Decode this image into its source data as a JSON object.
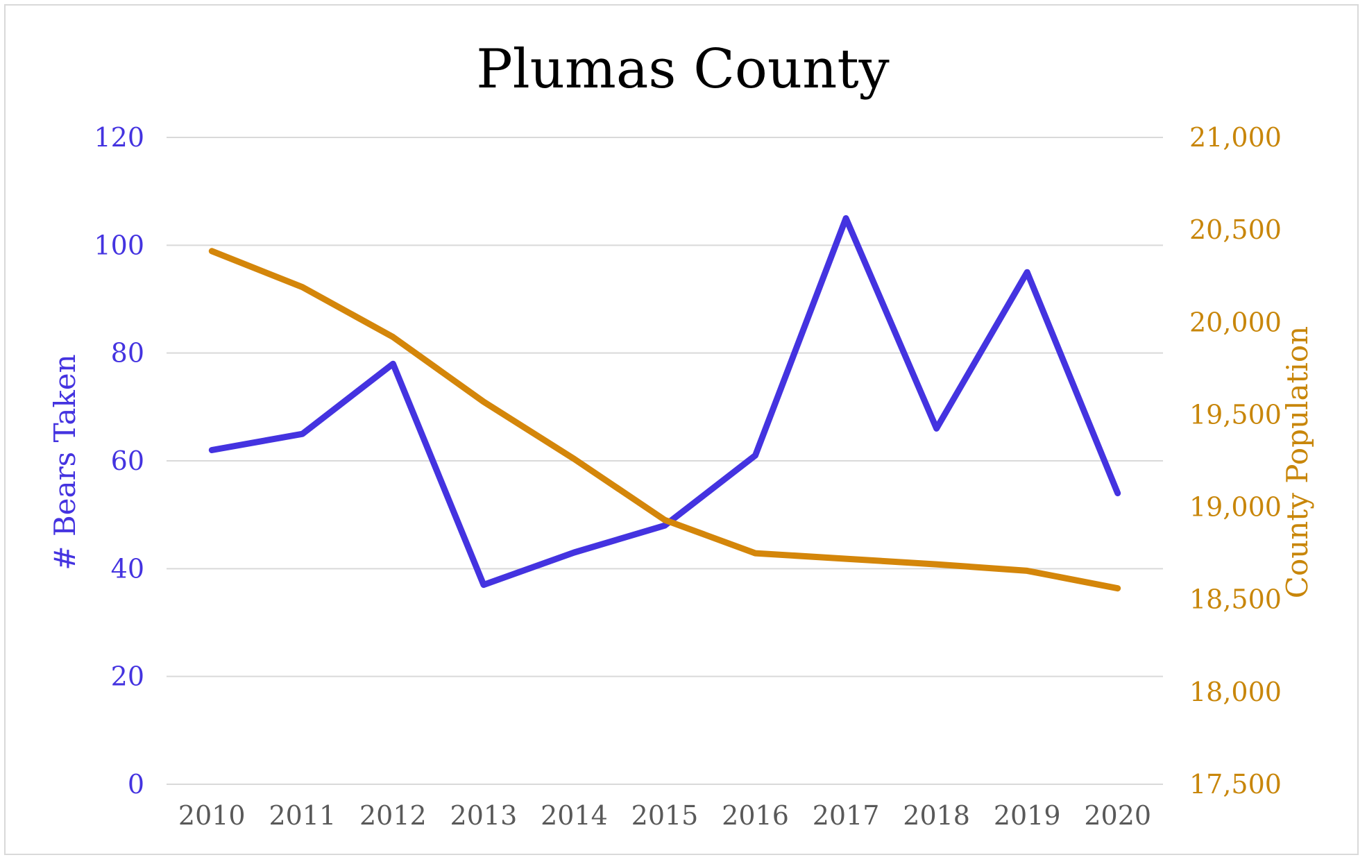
{
  "chart_data": {
    "type": "line",
    "title": "Plumas County",
    "xlabel": "",
    "categories": [
      "2010",
      "2011",
      "2012",
      "2013",
      "2014",
      "2015",
      "2016",
      "2017",
      "2018",
      "2019",
      "2020"
    ],
    "y_left": {
      "label": "# Bears Taken",
      "range": [
        0,
        120
      ],
      "ticks": [
        "0",
        "20",
        "40",
        "60",
        "80",
        "100",
        "120"
      ],
      "color": "#4433e0"
    },
    "y_right": {
      "label": "County Population",
      "range": [
        17500,
        21000
      ],
      "ticks": [
        "17,500",
        "18,000",
        "18,500",
        "19,000",
        "19,500",
        "20,000",
        "20,500",
        "21,000"
      ],
      "color": "#c8860a"
    },
    "series": [
      {
        "axis": "left",
        "color": "#4433e0",
        "values": [
          62,
          65,
          78,
          37,
          43,
          48,
          61,
          105,
          66,
          95,
          54
        ]
      },
      {
        "axis": "right",
        "color": "#d4860a",
        "values": [
          20385,
          20190,
          19920,
          19570,
          19260,
          18930,
          18750,
          18720,
          18690,
          18655,
          18560
        ]
      }
    ],
    "grid": true,
    "legend": "none"
  }
}
